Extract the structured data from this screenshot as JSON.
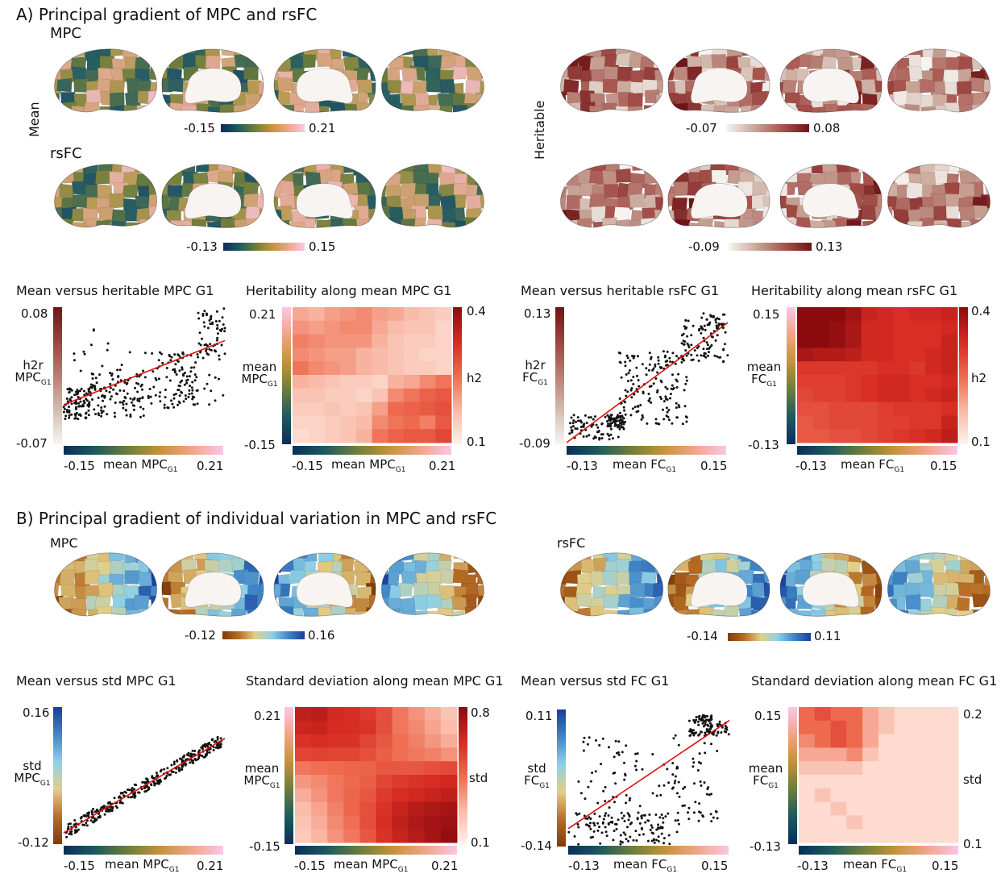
{
  "section_a": {
    "title": "A) Principal gradient of MPC and rsFC",
    "mpc_label": "MPC",
    "rsfc_label": "rsFC",
    "mean_label": "Mean",
    "heritable_label": "Heritable",
    "mpc_mean_range": [
      "-0.15",
      "0.21"
    ],
    "rsfc_mean_range": [
      "-0.13",
      "0.15"
    ],
    "mpc_herit_range": [
      "-0.07",
      "0.08"
    ],
    "rsfc_herit_range": [
      "-0.09",
      "0.13"
    ]
  },
  "section_b": {
    "title": "B) Principal gradient of individual variation in MPC and rsFC",
    "mpc_label": "MPC",
    "rsfc_label": "rsFC",
    "mpc_range": [
      "-0.12",
      "0.16"
    ],
    "rsfc_range": [
      "-0.14",
      "0.11"
    ]
  },
  "colors": {
    "batlow": [
      "#0a2e5a",
      "#1c5a5e",
      "#6b7e3a",
      "#c4923a",
      "#f0a585",
      "#fbc6e6"
    ],
    "mean_map_palette": [
      "#1c4b66",
      "#2a5f63",
      "#6b7c3c",
      "#b79a52",
      "#e0a890",
      "#f5c6d8"
    ],
    "herit": [
      "#f7f5f2",
      "#c9a89a",
      "#a8554f",
      "#6e1416"
    ],
    "heat": [
      "#fff2ee",
      "#f9b8a5",
      "#ee6a4f",
      "#d62a22",
      "#8b0a0e"
    ],
    "roma": [
      "#7f3b08",
      "#b86d25",
      "#e3cf88",
      "#8fd0e6",
      "#3f86c7",
      "#1a3d9a"
    ],
    "regression_line": "#dd1111"
  },
  "chart_data": [
    {
      "type": "scatter",
      "title": "Mean versus heritable MPC G1",
      "xlabel": "mean MPC G1",
      "ylabel": "h2r MPC G1",
      "xlim": [
        -0.15,
        0.21
      ],
      "ylim": [
        -0.07,
        0.08
      ],
      "xticks": [
        "-0.15",
        "0.21"
      ],
      "yticks": [
        "0.08",
        "-0.07"
      ],
      "trend": {
        "start": [
          -0.15,
          -0.028
        ],
        "end": [
          0.21,
          0.043
        ]
      },
      "cloud": [
        {
          "x": [
            -0.15,
            -0.09
          ],
          "y": [
            -0.045,
            -0.01
          ],
          "n": 100
        },
        {
          "x": [
            -0.09,
            0.03
          ],
          "y": [
            -0.042,
            0.01
          ],
          "n": 110
        },
        {
          "x": [
            0.03,
            0.15
          ],
          "y": [
            -0.032,
            0.03
          ],
          "n": 100
        },
        {
          "x": [
            0.15,
            0.21
          ],
          "y": [
            0.022,
            0.08
          ],
          "n": 60
        },
        {
          "x": [
            0.1,
            0.21
          ],
          "y": [
            -0.03,
            0.01
          ],
          "n": 22
        },
        {
          "x": [
            -0.13,
            0.0
          ],
          "y": [
            0.0,
            0.06
          ],
          "n": 18
        }
      ]
    },
    {
      "type": "heatmap",
      "title": "Heritability along mean MPC G1",
      "xlabel": "mean MPC G1",
      "ylabel": "mean MPC G1",
      "xticks": [
        "-0.15",
        "0.21"
      ],
      "yticks": [
        "0.21",
        "-0.15"
      ],
      "colorbar_label": "h2",
      "colorbar_ticks": [
        "0.4",
        "0.1"
      ],
      "vmin": 0.1,
      "vmax": 0.4,
      "values": [
        [
          0.19,
          0.18,
          0.2,
          0.21,
          0.22,
          0.2,
          0.19,
          0.17,
          0.16,
          0.15
        ],
        [
          0.21,
          0.2,
          0.21,
          0.22,
          0.22,
          0.19,
          0.17,
          0.16,
          0.16,
          0.14
        ],
        [
          0.23,
          0.22,
          0.21,
          0.21,
          0.21,
          0.18,
          0.16,
          0.15,
          0.15,
          0.14
        ],
        [
          0.22,
          0.21,
          0.2,
          0.2,
          0.18,
          0.17,
          0.16,
          0.15,
          0.14,
          0.14
        ],
        [
          0.24,
          0.22,
          0.21,
          0.2,
          0.18,
          0.17,
          0.16,
          0.15,
          0.15,
          0.14
        ],
        [
          0.18,
          0.17,
          0.16,
          0.15,
          0.15,
          0.14,
          0.18,
          0.19,
          0.22,
          0.24
        ],
        [
          0.16,
          0.16,
          0.15,
          0.15,
          0.14,
          0.16,
          0.22,
          0.24,
          0.26,
          0.27
        ],
        [
          0.15,
          0.15,
          0.16,
          0.15,
          0.16,
          0.2,
          0.25,
          0.26,
          0.27,
          0.28
        ],
        [
          0.14,
          0.14,
          0.15,
          0.16,
          0.17,
          0.22,
          0.24,
          0.25,
          0.23,
          0.27
        ],
        [
          0.13,
          0.14,
          0.15,
          0.16,
          0.18,
          0.24,
          0.26,
          0.27,
          0.27,
          0.29
        ]
      ]
    },
    {
      "type": "scatter",
      "title": "Mean versus heritable rsFC G1",
      "xlabel": "mean FC G1",
      "ylabel": "h2r FC G1",
      "xlim": [
        -0.13,
        0.15
      ],
      "ylim": [
        -0.09,
        0.13
      ],
      "xticks": [
        "-0.13",
        "0.15"
      ],
      "yticks": [
        "0.13",
        "-0.09"
      ],
      "trend": {
        "start": [
          -0.13,
          -0.09
        ],
        "end": [
          0.15,
          0.105
        ]
      },
      "cloud": [
        {
          "x": [
            -0.125,
            -0.04
          ],
          "y": [
            -0.085,
            -0.045
          ],
          "n": 70
        },
        {
          "x": [
            -0.06,
            -0.03
          ],
          "y": [
            -0.07,
            -0.045
          ],
          "n": 60
        },
        {
          "x": [
            -0.04,
            0.08
          ],
          "y": [
            -0.06,
            0.06
          ],
          "n": 160
        },
        {
          "x": [
            0.07,
            0.15
          ],
          "y": [
            0.04,
            0.11
          ],
          "n": 80
        },
        {
          "x": [
            0.1,
            0.15
          ],
          "y": [
            0.09,
            0.12
          ],
          "n": 30
        }
      ]
    },
    {
      "type": "heatmap",
      "title": "Heritability along mean rsFC G1",
      "xlabel": "mean FC G1",
      "ylabel": "mean FC G1",
      "xticks": [
        "-0.13",
        "0.15"
      ],
      "yticks": [
        "0.15",
        "-0.13"
      ],
      "colorbar_label": "h2",
      "colorbar_ticks": [
        "0.4",
        "0.1"
      ],
      "vmin": 0.1,
      "vmax": 0.4,
      "values": [
        [
          0.4,
          0.4,
          0.4,
          0.38,
          0.34,
          0.33,
          0.32,
          0.33,
          0.33,
          0.34
        ],
        [
          0.4,
          0.4,
          0.39,
          0.37,
          0.33,
          0.33,
          0.32,
          0.32,
          0.32,
          0.33
        ],
        [
          0.4,
          0.4,
          0.39,
          0.37,
          0.33,
          0.33,
          0.32,
          0.32,
          0.32,
          0.34
        ],
        [
          0.37,
          0.36,
          0.36,
          0.35,
          0.33,
          0.33,
          0.32,
          0.32,
          0.33,
          0.34
        ],
        [
          0.31,
          0.31,
          0.31,
          0.31,
          0.31,
          0.32,
          0.32,
          0.31,
          0.33,
          0.34
        ],
        [
          0.3,
          0.3,
          0.3,
          0.31,
          0.32,
          0.33,
          0.33,
          0.32,
          0.32,
          0.33
        ],
        [
          0.29,
          0.3,
          0.3,
          0.31,
          0.32,
          0.33,
          0.33,
          0.32,
          0.33,
          0.34
        ],
        [
          0.28,
          0.28,
          0.29,
          0.29,
          0.29,
          0.3,
          0.31,
          0.31,
          0.31,
          0.32
        ],
        [
          0.27,
          0.28,
          0.29,
          0.29,
          0.29,
          0.3,
          0.3,
          0.31,
          0.31,
          0.34
        ],
        [
          0.27,
          0.27,
          0.28,
          0.28,
          0.29,
          0.3,
          0.31,
          0.32,
          0.33,
          0.35
        ]
      ]
    },
    {
      "type": "scatter",
      "title": "Mean versus std MPC G1",
      "xlabel": "mean MPC G1",
      "ylabel": "std MPC G1",
      "xlim": [
        -0.15,
        0.21
      ],
      "ylim": [
        -0.12,
        0.16
      ],
      "xticks": [
        "-0.15",
        "0.21"
      ],
      "yticks": [
        "0.16",
        "-0.12"
      ],
      "trend": {
        "start": [
          -0.15,
          -0.1
        ],
        "end": [
          0.21,
          0.095
        ]
      },
      "band": {
        "n": 330,
        "x": [
          -0.145,
          0.205
        ],
        "spread": 0.014
      }
    },
    {
      "type": "heatmap",
      "title": "Standard deviation along mean MPC G1",
      "xlabel": "mean MPC G1",
      "ylabel": "mean MPC G1",
      "xticks": [
        "-0.15",
        "0.21"
      ],
      "yticks": [
        "0.21",
        "-0.15"
      ],
      "colorbar_label": "std",
      "colorbar_ticks": [
        "0.8",
        "0.1"
      ],
      "vmin": 0.1,
      "vmax": 0.8,
      "values": [
        [
          0.68,
          0.69,
          0.63,
          0.62,
          0.58,
          0.52,
          0.42,
          0.36,
          0.3,
          0.24
        ],
        [
          0.65,
          0.66,
          0.62,
          0.62,
          0.6,
          0.52,
          0.42,
          0.38,
          0.32,
          0.26
        ],
        [
          0.6,
          0.62,
          0.6,
          0.6,
          0.55,
          0.5,
          0.44,
          0.4,
          0.35,
          0.3
        ],
        [
          0.55,
          0.56,
          0.55,
          0.55,
          0.52,
          0.48,
          0.44,
          0.42,
          0.4,
          0.36
        ],
        [
          0.42,
          0.44,
          0.45,
          0.46,
          0.47,
          0.5,
          0.5,
          0.5,
          0.52,
          0.54
        ],
        [
          0.35,
          0.38,
          0.42,
          0.45,
          0.48,
          0.55,
          0.58,
          0.6,
          0.62,
          0.64
        ],
        [
          0.3,
          0.36,
          0.42,
          0.46,
          0.5,
          0.58,
          0.62,
          0.64,
          0.66,
          0.68
        ],
        [
          0.26,
          0.32,
          0.4,
          0.46,
          0.52,
          0.6,
          0.66,
          0.7,
          0.72,
          0.74
        ],
        [
          0.24,
          0.3,
          0.38,
          0.44,
          0.52,
          0.62,
          0.68,
          0.72,
          0.74,
          0.76
        ],
        [
          0.22,
          0.28,
          0.36,
          0.42,
          0.5,
          0.6,
          0.66,
          0.7,
          0.74,
          0.78
        ]
      ]
    },
    {
      "type": "scatter",
      "title": "Mean versus std FC G1",
      "xlabel": "mean FC G1",
      "ylabel": "std FC G1",
      "xlim": [
        -0.13,
        0.15
      ],
      "ylim": [
        -0.14,
        0.11
      ],
      "xticks": [
        "-0.13",
        "0.15"
      ],
      "yticks": [
        "0.11",
        "-0.14"
      ],
      "trend": {
        "start": [
          -0.13,
          -0.11
        ],
        "end": [
          0.15,
          0.09
        ]
      },
      "cloud": [
        {
          "x": [
            -0.13,
            0.05
          ],
          "y": [
            -0.14,
            -0.08
          ],
          "n": 110
        },
        {
          "x": [
            -0.12,
            0.08
          ],
          "y": [
            -0.12,
            0.06
          ],
          "n": 90
        },
        {
          "x": [
            0.05,
            0.13
          ],
          "y": [
            -0.1,
            0.08
          ],
          "n": 50
        },
        {
          "x": [
            0.08,
            0.12
          ],
          "y": [
            0.06,
            0.1
          ],
          "n": 80
        },
        {
          "x": [
            0.12,
            0.15
          ],
          "y": [
            0.06,
            0.09
          ],
          "n": 25
        }
      ]
    },
    {
      "type": "heatmap",
      "title": "Standard deviation along mean FC G1",
      "xlabel": "mean FC G1",
      "ylabel": "mean FC G1",
      "xticks": [
        "-0.13",
        "0.15"
      ],
      "yticks": [
        "0.15",
        "-0.13"
      ],
      "colorbar_label": "std",
      "colorbar_ticks": [
        "0.2",
        "0.1"
      ],
      "vmin": 0.1,
      "vmax": 0.2,
      "values": [
        [
          0.15,
          0.16,
          0.15,
          0.15,
          0.13,
          0.12,
          0.11,
          0.11,
          0.11,
          0.11
        ],
        [
          0.15,
          0.15,
          0.16,
          0.15,
          0.13,
          0.12,
          0.11,
          0.11,
          0.11,
          0.11
        ],
        [
          0.14,
          0.15,
          0.16,
          0.15,
          0.13,
          0.11,
          0.11,
          0.11,
          0.11,
          0.11
        ],
        [
          0.13,
          0.13,
          0.13,
          0.14,
          0.12,
          0.11,
          0.11,
          0.11,
          0.11,
          0.11
        ],
        [
          0.12,
          0.12,
          0.12,
          0.12,
          0.11,
          0.11,
          0.11,
          0.11,
          0.11,
          0.11
        ],
        [
          0.11,
          0.11,
          0.11,
          0.11,
          0.11,
          0.11,
          0.11,
          0.11,
          0.11,
          0.11
        ],
        [
          0.11,
          0.12,
          0.11,
          0.11,
          0.11,
          0.11,
          0.11,
          0.11,
          0.11,
          0.11
        ],
        [
          0.11,
          0.11,
          0.12,
          0.11,
          0.11,
          0.11,
          0.11,
          0.11,
          0.11,
          0.11
        ],
        [
          0.11,
          0.11,
          0.11,
          0.12,
          0.11,
          0.11,
          0.11,
          0.11,
          0.11,
          0.11
        ],
        [
          0.11,
          0.11,
          0.11,
          0.11,
          0.11,
          0.11,
          0.11,
          0.11,
          0.11,
          0.11
        ]
      ]
    }
  ]
}
